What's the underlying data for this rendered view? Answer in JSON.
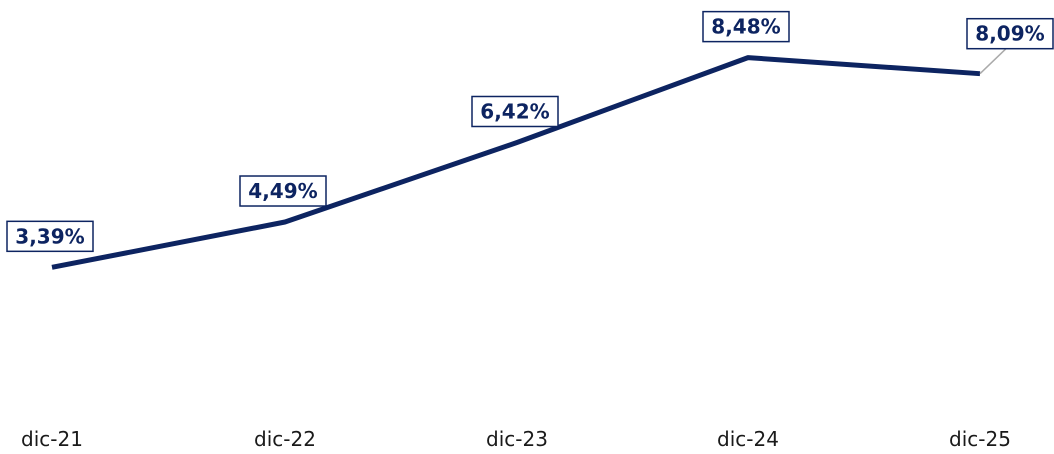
{
  "chart_data": {
    "type": "line",
    "categories": [
      "dic-21",
      "dic-22",
      "dic-23",
      "dic-24",
      "dic-25"
    ],
    "series": [
      {
        "name": null,
        "color": "#0d2461",
        "values": [
          3.39,
          4.49,
          6.42,
          8.48,
          8.09
        ],
        "value_labels": [
          "3,39%",
          "4,49%",
          "6,42%",
          "8,48%",
          "8,09%"
        ]
      }
    ],
    "ylim": [
      0,
      10
    ]
  }
}
